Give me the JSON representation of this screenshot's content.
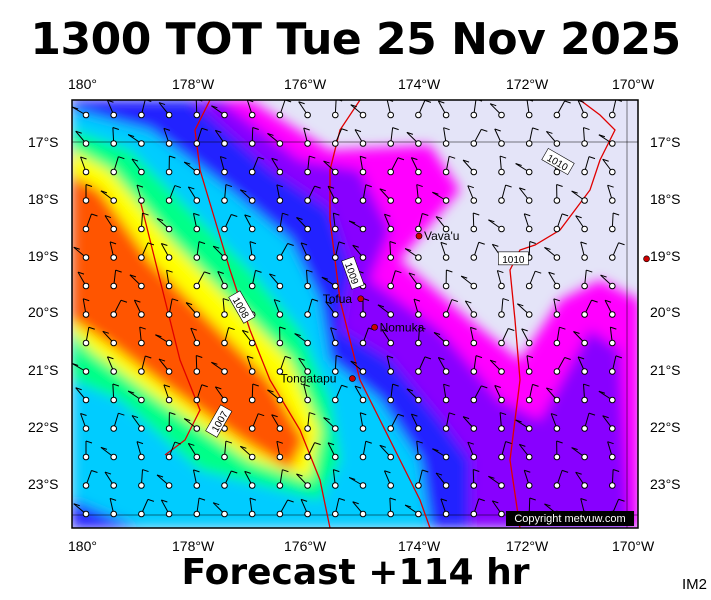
{
  "title": "1300 TOT Tue 25 Nov 2025",
  "footer": "Forecast +114 hr",
  "corner_label": "IM2",
  "copyright": "Copyright metvuw.com",
  "axes": {
    "lon_labels": [
      "180°",
      "178°W",
      "176°W",
      "174°W",
      "172°W",
      "170°W"
    ],
    "lat_labels": [
      "17°S",
      "18°S",
      "19°S",
      "20°S",
      "21°S",
      "22°S",
      "23°S"
    ]
  },
  "places": [
    {
      "name": "Vava'u",
      "lon": -174.0,
      "lat": -18.65
    },
    {
      "name": "Tofua",
      "lon": -175.05,
      "lat": -19.75
    },
    {
      "name": "Nomuka",
      "lon": -174.8,
      "lat": -20.25
    },
    {
      "name": "Tongatapu",
      "lon": -175.2,
      "lat": -21.15
    },
    {
      "name": "",
      "lon": -169.9,
      "lat": -19.05
    }
  ],
  "isobars": [
    {
      "label": "1010",
      "lon": -171.5,
      "lat": -17.35
    },
    {
      "label": "1010",
      "lon": -172.3,
      "lat": -19.05
    },
    {
      "label": "1009",
      "lon": -175.2,
      "lat": -19.3
    },
    {
      "label": "1008",
      "lon": -177.2,
      "lat": -19.9
    },
    {
      "label": "1007",
      "lon": -177.6,
      "lat": -21.9
    }
  ],
  "colors": {
    "background": "#e4e4f8",
    "precip_low": "#ff00ff",
    "precip_mid1": "#8800ff",
    "precip_mid2": "#2222ff",
    "precip_mid3": "#00ccff",
    "precip_mid4": "#00ff88",
    "precip_mid5": "#ffff00",
    "precip_high": "#ff5500",
    "isobar": "#e00000"
  }
}
